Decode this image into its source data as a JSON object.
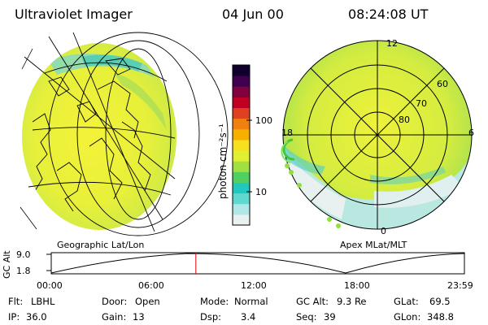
{
  "header": {
    "instrument": "Ultraviolet Imager",
    "date": "04 Jun 00",
    "time": "08:24:08 UT"
  },
  "left_panel": {
    "label": "Geographic Lat/Lon"
  },
  "right_panel": {
    "label": "Apex MLat/MLT",
    "mlt_labels": [
      "12",
      "18",
      "6",
      "0"
    ],
    "mlat_labels": [
      "60",
      "70",
      "80"
    ]
  },
  "colorbar": {
    "unit_label": "photon cm⁻²s⁻¹",
    "tick_labels": [
      "100",
      "10"
    ],
    "colors": [
      "#e8f0f0",
      "#b0e8e8",
      "#60d8d0",
      "#20c8c0",
      "#50d060",
      "#a0e040",
      "#e0f030",
      "#f8e020",
      "#f8b000",
      "#f08010",
      "#e04020",
      "#c00020",
      "#800040",
      "#400050",
      "#100030"
    ]
  },
  "altitude_plot": {
    "ylabel": "GC Alt",
    "yticks": [
      "9.0",
      "1.8"
    ],
    "xticks": [
      "00:00",
      "06:00",
      "12:00",
      "18:00",
      "23:59"
    ],
    "current_marker_fraction": 0.35,
    "marker_color": "#e00000"
  },
  "info": {
    "flt_label": "Flt:",
    "flt_value": "LBHL",
    "ip_label": "IP:",
    "ip_value": "36.0",
    "door_label": "Door:",
    "door_value": "Open",
    "gain_label": "Gain:",
    "gain_value": "13",
    "mode_label": "Mode:",
    "mode_value": "Normal",
    "dsp_label": "Dsp:",
    "dsp_value": "3.4",
    "gcalt_label": "GC Alt:",
    "gcalt_value": "9.3 Re",
    "seq_label": "Seq:",
    "seq_value": "39",
    "glat_label": "GLat:",
    "glat_value": "69.5",
    "glon_label": "GLon:",
    "glon_value": "348.8"
  }
}
